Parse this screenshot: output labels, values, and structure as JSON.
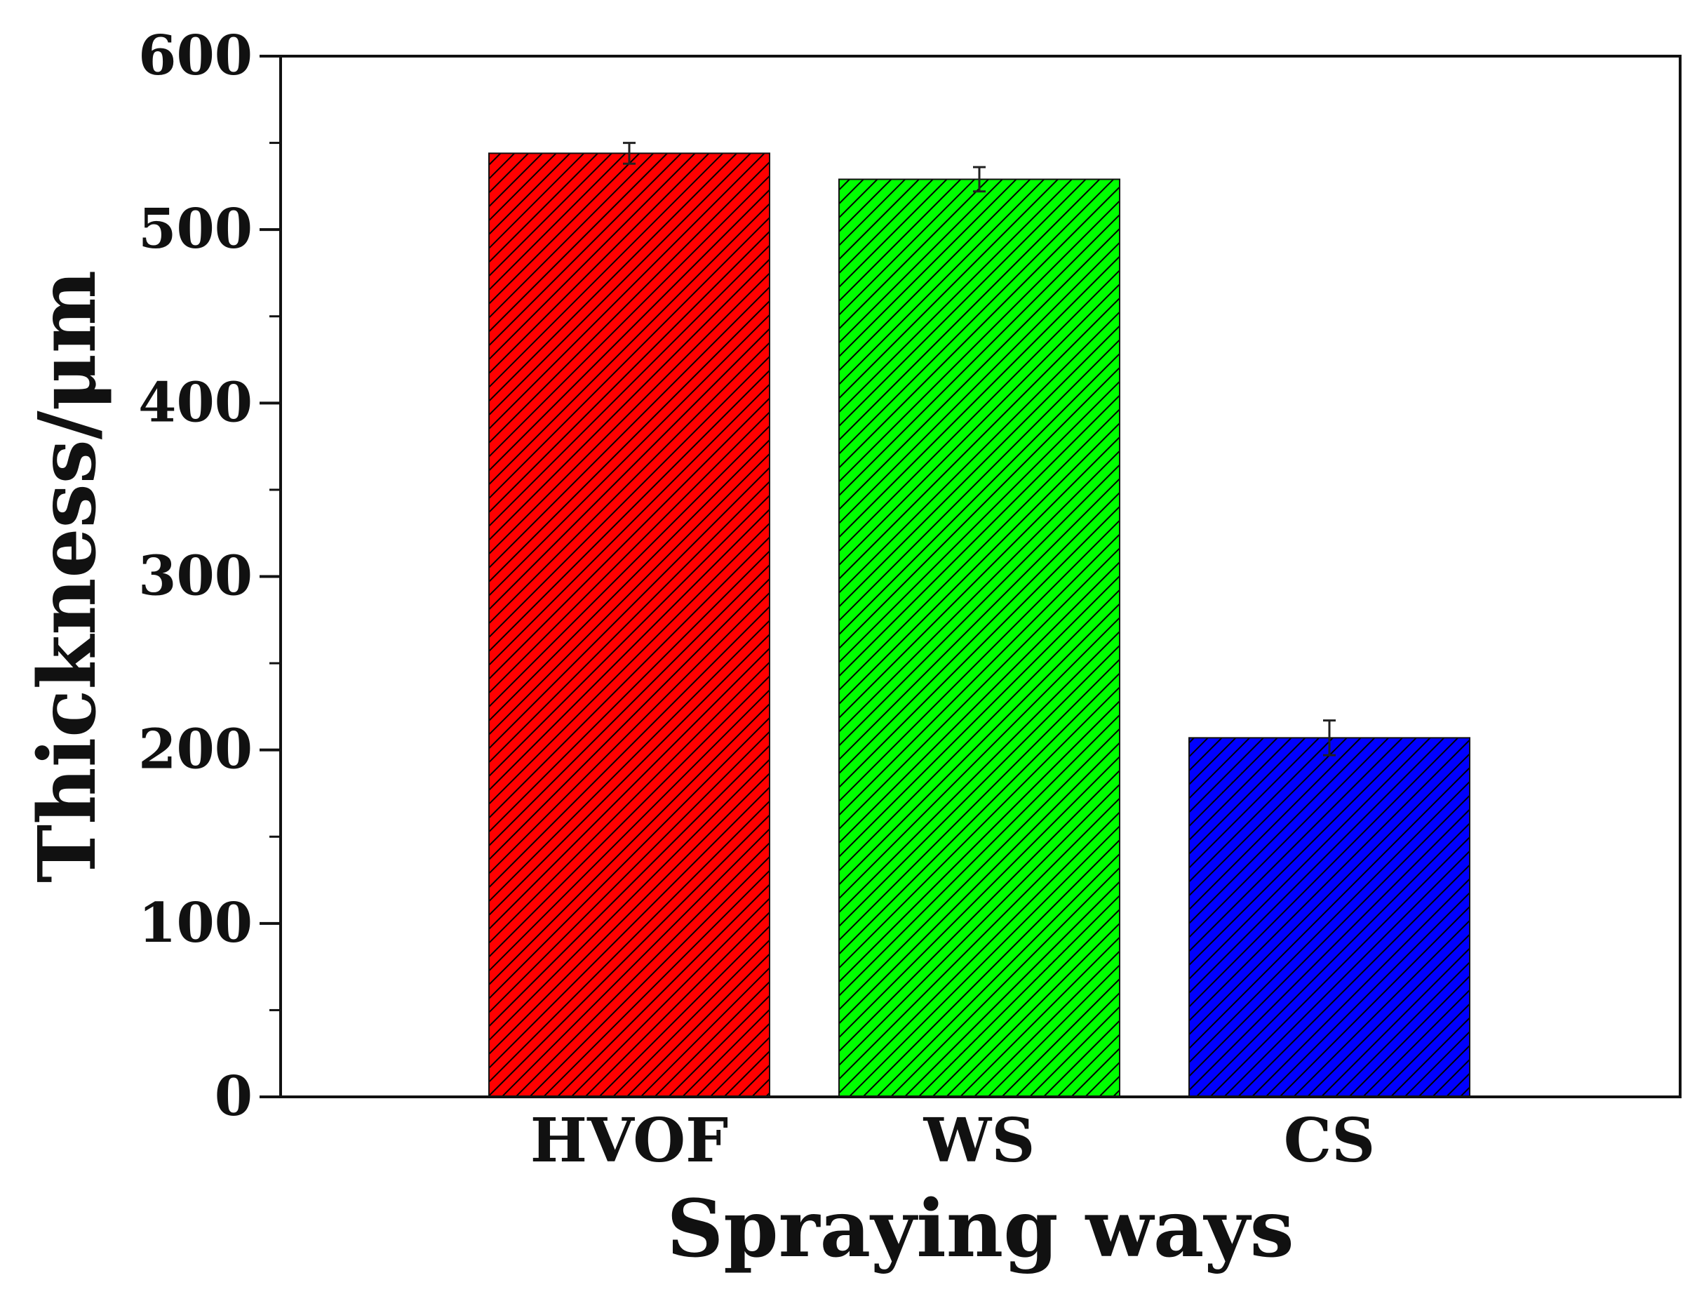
{
  "chart_data": {
    "type": "bar",
    "title": "",
    "xlabel": "Spraying ways",
    "ylabel": "Thickness/μm",
    "categories": [
      "HVOF",
      "WS",
      "CS"
    ],
    "series": [
      {
        "values": [
          544,
          529,
          207
        ],
        "errors": [
          6,
          7,
          10
        ],
        "colors": [
          "#ff0000",
          "#00ff00",
          "#0000ff"
        ]
      }
    ],
    "ylim": [
      0,
      600
    ],
    "yticks": [
      0,
      100,
      200,
      300,
      400,
      500,
      600
    ],
    "yticklabels": [
      "0",
      "100",
      "200",
      "300",
      "400",
      "500",
      "600"
    ],
    "minor_ticks": true,
    "bar_fill": "hatched",
    "hatch_color": "#000000",
    "grid": false,
    "legend": "none"
  }
}
